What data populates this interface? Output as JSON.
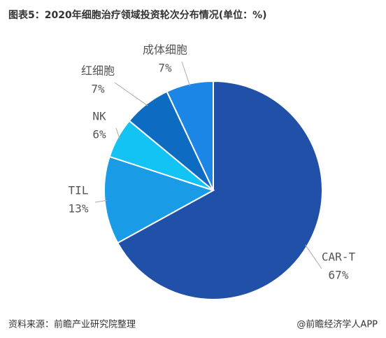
{
  "chart_data": {
    "type": "pie",
    "title": "图表5：2020年细胞治疗领域投资轮次分布情况(单位：%)",
    "categories": [
      "CAR-T",
      "TIL",
      "NK",
      "红细胞",
      "成体细胞"
    ],
    "values": [
      67,
      13,
      6,
      7,
      7
    ],
    "value_labels": [
      "67%",
      "13%",
      "6%",
      "7%",
      "7%"
    ],
    "colors": [
      "#2150a8",
      "#1a9be6",
      "#12c3f3",
      "#0d6cc2",
      "#1c86e6"
    ],
    "source": "资料来源：前瞻产业研究院整理",
    "credit": "@前瞻经济学人APP"
  }
}
